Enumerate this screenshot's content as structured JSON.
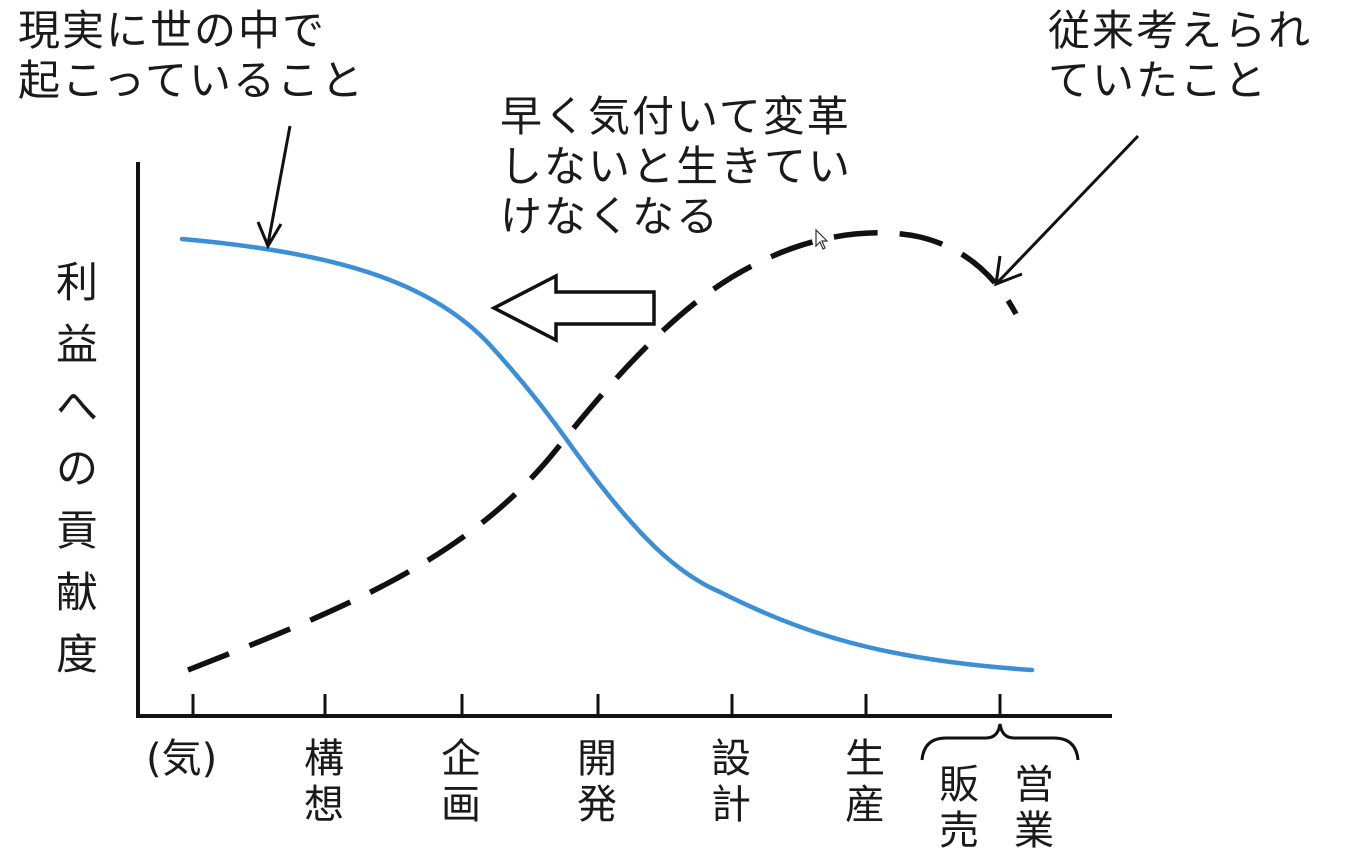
{
  "annotations": {
    "reality": {
      "line1": "現実に世の中で",
      "line2": "起こっていること"
    },
    "traditional": {
      "line1": "従来考えられ",
      "line2": "ていたこと"
    },
    "change": {
      "line1": "早く気付いて変革",
      "line2": "しないと生きてい",
      "line3": "けなくなる"
    }
  },
  "y_axis": {
    "chars": [
      "利",
      "益",
      "へ",
      "の",
      "貢",
      "献",
      "度"
    ]
  },
  "x_axis": {
    "categories": [
      {
        "chars": [
          "(気)"
        ]
      },
      {
        "chars": [
          "構",
          "想"
        ]
      },
      {
        "chars": [
          "企",
          "画"
        ]
      },
      {
        "chars": [
          "開",
          "発"
        ]
      },
      {
        "chars": [
          "設",
          "計"
        ]
      },
      {
        "chars": [
          "生",
          "産"
        ]
      },
      {
        "chars": [
          "販",
          "売"
        ]
      },
      {
        "chars": [
          "営",
          "業"
        ]
      }
    ]
  },
  "series": {
    "reality": {
      "style": "solid",
      "color": "#3a8fd6"
    },
    "traditional": {
      "style": "dashed",
      "color": "#111111"
    }
  }
}
